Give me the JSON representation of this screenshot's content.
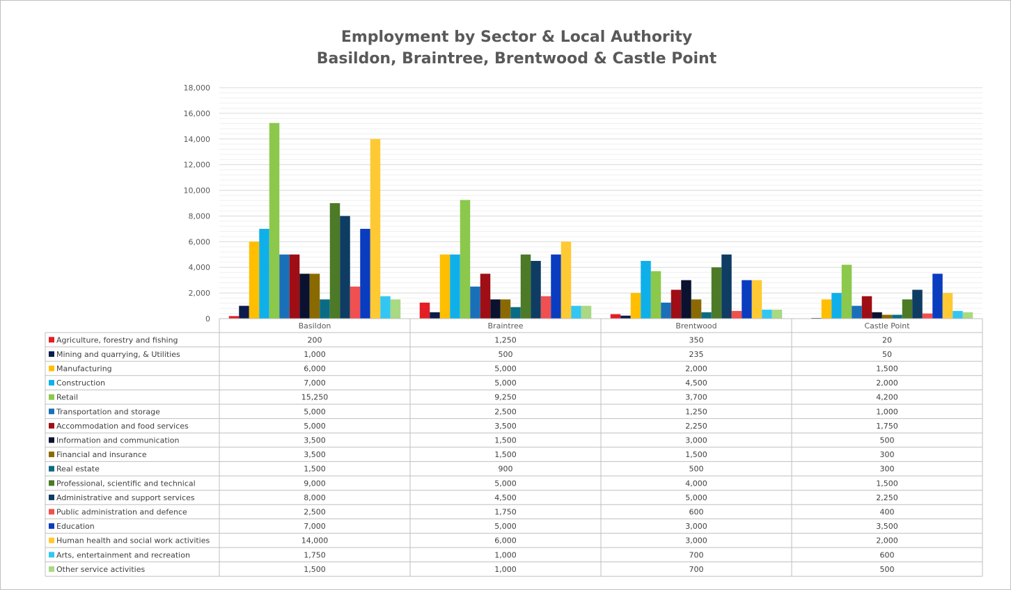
{
  "chart_data": {
    "type": "bar",
    "title": "Employment by Sector & Local Authority",
    "subtitle": "Basildon, Braintree, Brentwood & Castle Point",
    "xlabel": "",
    "ylabel": "",
    "ylim": [
      0,
      18000
    ],
    "y_ticks": [
      "0",
      "2,000",
      "4,000",
      "6,000",
      "8,000",
      "10,000",
      "12,000",
      "14,000",
      "16,000",
      "18,000"
    ],
    "grid": true,
    "legend": "data-table",
    "categories": [
      "Basildon",
      "Braintree",
      "Brentwood",
      "Castle Point"
    ],
    "series": [
      {
        "name": "Agriculture, forestry and fishing",
        "color": "#e31e24",
        "values": [
          200,
          1250,
          350,
          20
        ],
        "labels": [
          "200",
          "1,250",
          "350",
          "20"
        ]
      },
      {
        "name": "Mining and quarrying, & Utilities",
        "color": "#0d1b4c",
        "values": [
          1000,
          500,
          235,
          50
        ],
        "labels": [
          "1,000",
          "500",
          "235",
          "50"
        ]
      },
      {
        "name": "Manufacturing",
        "color": "#ffbf00",
        "values": [
          6000,
          5000,
          2000,
          1500
        ],
        "labels": [
          "6,000",
          "5,000",
          "2,000",
          "1,500"
        ]
      },
      {
        "name": "Construction",
        "color": "#0fb0ea",
        "values": [
          7000,
          5000,
          4500,
          2000
        ],
        "labels": [
          "7,000",
          "5,000",
          "4,500",
          "2,000"
        ]
      },
      {
        "name": "Retail",
        "color": "#8cc84b",
        "values": [
          15250,
          9250,
          3700,
          4200
        ],
        "labels": [
          "15,250",
          "9,250",
          "3,700",
          "4,200"
        ]
      },
      {
        "name": "Transportation and storage",
        "color": "#1a6fb9",
        "values": [
          5000,
          2500,
          1250,
          1000
        ],
        "labels": [
          "5,000",
          "2,500",
          "1,250",
          "1,000"
        ]
      },
      {
        "name": "Accommodation and food services",
        "color": "#9e0e14",
        "values": [
          5000,
          3500,
          2250,
          1750
        ],
        "labels": [
          "5,000",
          "3,500",
          "2,250",
          "1,750"
        ]
      },
      {
        "name": "Information and communication",
        "color": "#0b1230",
        "values": [
          3500,
          1500,
          3000,
          500
        ],
        "labels": [
          "3,500",
          "1,500",
          "3,000",
          "500"
        ]
      },
      {
        "name": "Financial and insurance",
        "color": "#8a6a00",
        "values": [
          3500,
          1500,
          1500,
          300
        ],
        "labels": [
          "3,500",
          "1,500",
          "1,500",
          "300"
        ]
      },
      {
        "name": "Real estate",
        "color": "#0b6b85",
        "values": [
          1500,
          900,
          500,
          300
        ],
        "labels": [
          "1,500",
          "900",
          "500",
          "300"
        ]
      },
      {
        "name": "Professional, scientific and technical",
        "color": "#4c7a26",
        "values": [
          9000,
          5000,
          4000,
          1500
        ],
        "labels": [
          "9,000",
          "5,000",
          "4,000",
          "1,500"
        ]
      },
      {
        "name": "Administrative and support services",
        "color": "#0e3c63",
        "values": [
          8000,
          4500,
          5000,
          2250
        ],
        "labels": [
          "8,000",
          "4,500",
          "5,000",
          "2,250"
        ]
      },
      {
        "name": "Public administration and defence",
        "color": "#f05050",
        "values": [
          2500,
          1750,
          600,
          400
        ],
        "labels": [
          "2,500",
          "1,750",
          "600",
          "400"
        ]
      },
      {
        "name": "Education",
        "color": "#0a3cc0",
        "values": [
          7000,
          5000,
          3000,
          3500
        ],
        "labels": [
          "7,000",
          "5,000",
          "3,000",
          "3,500"
        ]
      },
      {
        "name": "Human health and social work activities",
        "color": "#ffc933",
        "values": [
          14000,
          6000,
          3000,
          2000
        ],
        "labels": [
          "14,000",
          "6,000",
          "3,000",
          "2,000"
        ]
      },
      {
        "name": "Arts, entertainment and recreation",
        "color": "#33c6f2",
        "values": [
          1750,
          1000,
          700,
          600
        ],
        "labels": [
          "1,750",
          "1,000",
          "700",
          "600"
        ]
      },
      {
        "name": "Other service activities",
        "color": "#a9d982",
        "values": [
          1500,
          1000,
          700,
          500
        ],
        "labels": [
          "1,500",
          "1,000",
          "700",
          "500"
        ]
      }
    ]
  }
}
